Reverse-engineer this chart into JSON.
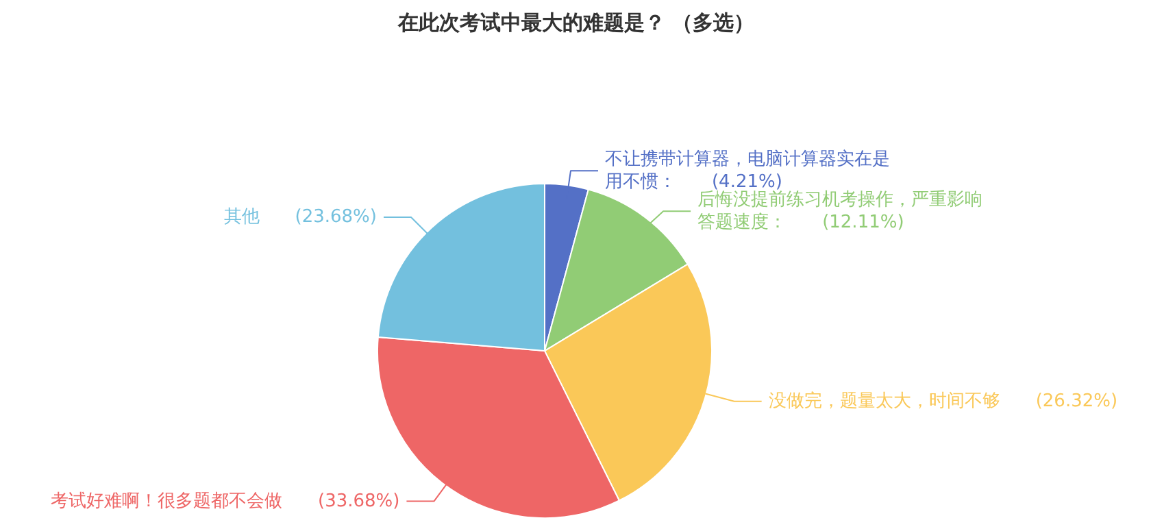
{
  "chart_data": {
    "type": "pie",
    "title": "在此次考试中最大的难题是？ （多选）",
    "categories": [
      "不让携带计算器，电脑计算器实在是用不惯",
      "后悔没提前练习机考操作，严重影响答题速度",
      "没做完，题量太大，时间不够",
      "考试好难啊！很多题都不会做",
      "其他"
    ],
    "values": [
      4.21,
      12.11,
      26.32,
      33.68,
      23.68
    ],
    "value_labels": [
      "(4.21%)",
      "(12.11%)",
      "(26.32%)",
      "(33.68%)",
      "(23.68%)"
    ],
    "colors": [
      "#5470c6",
      "#91cc75",
      "#fac858",
      "#ee6666",
      "#73c0de"
    ]
  }
}
